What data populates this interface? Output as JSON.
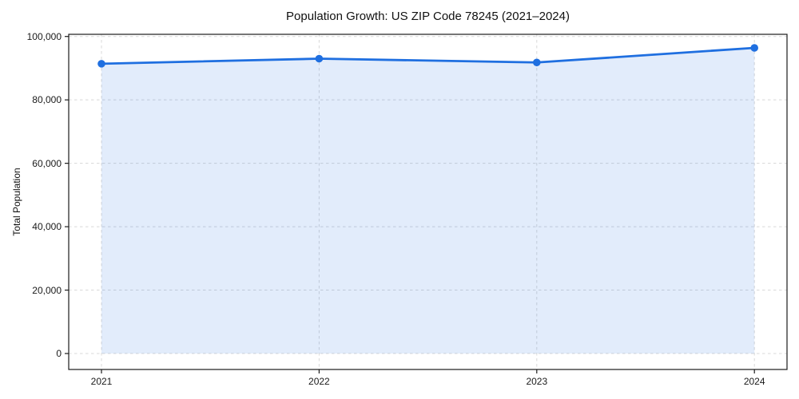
{
  "chart_data": {
    "type": "line",
    "title": "Population Growth: US ZIP Code 78245 (2021–2024)",
    "xlabel": "",
    "ylabel": "Total Population",
    "categories": [
      "2021",
      "2022",
      "2023",
      "2024"
    ],
    "series": [
      {
        "name": "Total Population",
        "values": [
          91400,
          93000,
          91800,
          96400
        ]
      }
    ],
    "ytick_values": [
      0,
      20000,
      40000,
      60000,
      80000,
      100000
    ],
    "ytick_labels": [
      "0",
      "20,000",
      "40,000",
      "60,000",
      "80,000",
      "100,000"
    ],
    "ylim": [
      0,
      100000
    ],
    "grid": "dashed, both axes",
    "legend": "none",
    "marker": "circle",
    "area_fill": "under line from first to last point",
    "colors": {
      "line": "#1f6fe0",
      "marker": "#1f6fe0",
      "fill": "#e6eefb",
      "grid": "#d8d8d8",
      "spine": "#1c1c1c",
      "text": "#111111",
      "background": "#ffffff"
    }
  }
}
